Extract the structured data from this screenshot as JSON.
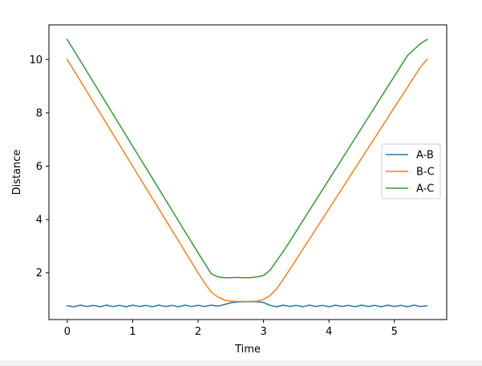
{
  "chart_data": {
    "type": "line",
    "title": "",
    "xlabel": "Time",
    "ylabel": "Distance",
    "xlim": [
      -0.28,
      5.8
    ],
    "ylim": [
      0.25,
      11.3
    ],
    "xticks": [
      0,
      1,
      2,
      3,
      4,
      5
    ],
    "yticks": [
      2,
      4,
      6,
      8,
      10
    ],
    "grid": false,
    "legend_position": "right",
    "series": [
      {
        "name": "A-B",
        "color": "#1f77b4",
        "x": [
          0,
          0.1,
          0.2,
          0.3,
          0.4,
          0.5,
          0.6,
          0.7,
          0.8,
          0.9,
          1.0,
          1.1,
          1.2,
          1.3,
          1.4,
          1.5,
          1.6,
          1.7,
          1.8,
          1.9,
          2.0,
          2.1,
          2.2,
          2.3,
          2.4,
          2.5,
          2.6,
          2.7,
          2.8,
          2.9,
          3.0,
          3.1,
          3.2,
          3.3,
          3.4,
          3.5,
          3.6,
          3.7,
          3.8,
          3.9,
          4.0,
          4.1,
          4.2,
          4.3,
          4.4,
          4.5,
          4.6,
          4.7,
          4.8,
          4.9,
          5.0,
          5.1,
          5.2,
          5.3,
          5.4,
          5.5
        ],
        "y": [
          0.77,
          0.73,
          0.79,
          0.74,
          0.78,
          0.73,
          0.79,
          0.74,
          0.78,
          0.73,
          0.79,
          0.74,
          0.78,
          0.73,
          0.79,
          0.74,
          0.78,
          0.73,
          0.79,
          0.74,
          0.78,
          0.74,
          0.79,
          0.75,
          0.81,
          0.88,
          0.91,
          0.92,
          0.92,
          0.92,
          0.89,
          0.78,
          0.73,
          0.79,
          0.74,
          0.78,
          0.73,
          0.79,
          0.74,
          0.78,
          0.73,
          0.79,
          0.74,
          0.78,
          0.73,
          0.79,
          0.74,
          0.78,
          0.73,
          0.79,
          0.74,
          0.78,
          0.73,
          0.79,
          0.74,
          0.77
        ]
      },
      {
        "name": "B-C",
        "color": "#ff7f0e",
        "x": [
          0,
          0.2,
          0.4,
          0.6,
          0.8,
          1.0,
          1.2,
          1.4,
          1.6,
          1.8,
          2.0,
          2.1,
          2.2,
          2.3,
          2.4,
          2.5,
          2.6,
          2.7,
          2.8,
          2.9,
          3.0,
          3.1,
          3.2,
          3.3,
          3.4,
          3.6,
          3.8,
          4.0,
          4.2,
          4.4,
          4.6,
          4.8,
          5.0,
          5.2,
          5.4,
          5.5
        ],
        "y": [
          10.0,
          9.2,
          8.4,
          7.6,
          6.8,
          6.0,
          5.2,
          4.4,
          3.6,
          2.8,
          2.0,
          1.62,
          1.28,
          1.1,
          0.98,
          0.94,
          0.93,
          0.93,
          0.93,
          0.94,
          1.0,
          1.15,
          1.4,
          1.75,
          2.12,
          2.88,
          3.64,
          4.4,
          5.16,
          5.92,
          6.68,
          7.44,
          8.2,
          8.96,
          9.72,
          10.0
        ]
      },
      {
        "name": "A-C",
        "color": "#2ca02c",
        "x": [
          0,
          0.2,
          0.4,
          0.6,
          0.8,
          1.0,
          1.2,
          1.4,
          1.6,
          1.8,
          2.0,
          2.1,
          2.2,
          2.3,
          2.4,
          2.5,
          2.6,
          2.7,
          2.8,
          2.9,
          3.0,
          3.1,
          3.2,
          3.3,
          3.4,
          3.6,
          3.8,
          4.0,
          4.2,
          4.4,
          4.6,
          4.8,
          5.0,
          5.2,
          5.4,
          5.5
        ],
        "y": [
          10.75,
          9.95,
          9.15,
          8.35,
          7.55,
          6.75,
          5.95,
          5.15,
          4.35,
          3.55,
          2.75,
          2.36,
          1.97,
          1.85,
          1.82,
          1.82,
          1.83,
          1.82,
          1.82,
          1.85,
          1.9,
          2.1,
          2.45,
          2.8,
          3.17,
          3.95,
          4.72,
          5.5,
          6.27,
          7.05,
          7.82,
          8.6,
          9.37,
          10.15,
          10.6,
          10.75
        ]
      }
    ]
  }
}
